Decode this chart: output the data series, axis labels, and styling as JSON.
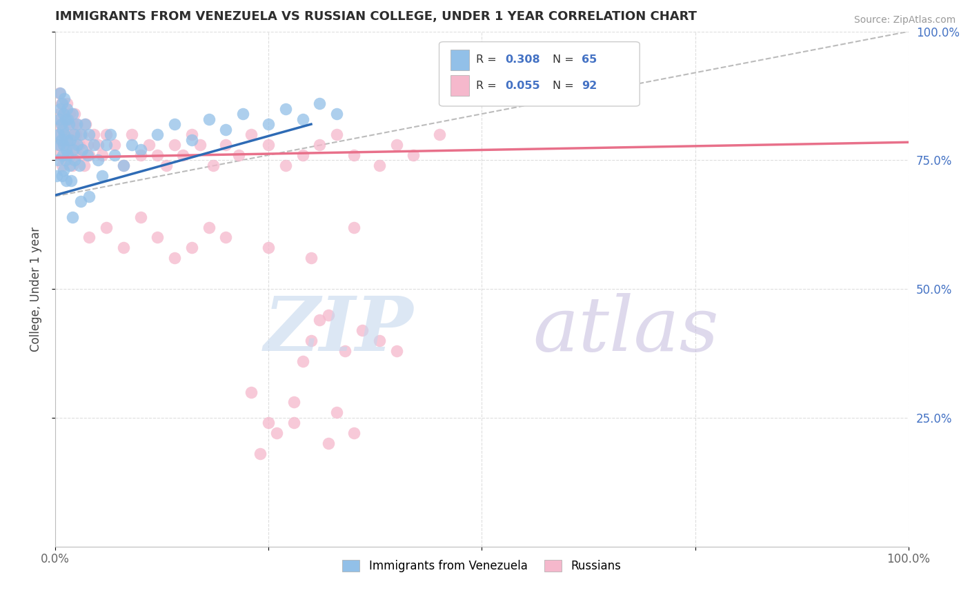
{
  "title": "IMMIGRANTS FROM VENEZUELA VS RUSSIAN COLLEGE, UNDER 1 YEAR CORRELATION CHART",
  "source": "Source: ZipAtlas.com",
  "ylabel": "College, Under 1 year",
  "xlim": [
    0,
    1
  ],
  "ylim": [
    0,
    1
  ],
  "blue_color": "#92C0E8",
  "pink_color": "#F5B8CC",
  "blue_line_color": "#2E6BB5",
  "pink_line_color": "#E8708A",
  "dashed_line_color": "#AAAAAA",
  "legend_label1": "Immigrants from Venezuela",
  "legend_label2": "Russians",
  "title_color": "#2D2D2D",
  "r_value_color": "#4472C4",
  "n_value_color": "#4472C4",
  "blue_scatter_x": [
    0.002,
    0.003,
    0.004,
    0.005,
    0.005,
    0.006,
    0.006,
    0.007,
    0.007,
    0.008,
    0.008,
    0.009,
    0.009,
    0.01,
    0.01,
    0.01,
    0.011,
    0.011,
    0.012,
    0.012,
    0.013,
    0.013,
    0.014,
    0.014,
    0.015,
    0.015,
    0.016,
    0.017,
    0.018,
    0.019,
    0.02,
    0.021,
    0.022,
    0.023,
    0.025,
    0.026,
    0.028,
    0.03,
    0.032,
    0.035,
    0.038,
    0.04,
    0.045,
    0.05,
    0.055,
    0.06,
    0.065,
    0.07,
    0.08,
    0.09,
    0.1,
    0.12,
    0.14,
    0.16,
    0.18,
    0.2,
    0.22,
    0.25,
    0.27,
    0.29,
    0.31,
    0.33,
    0.02,
    0.03,
    0.04
  ],
  "blue_scatter_y": [
    0.72,
    0.75,
    0.8,
    0.83,
    0.78,
    0.85,
    0.88,
    0.82,
    0.79,
    0.86,
    0.72,
    0.76,
    0.81,
    0.84,
    0.78,
    0.73,
    0.8,
    0.87,
    0.75,
    0.83,
    0.77,
    0.71,
    0.85,
    0.79,
    0.83,
    0.76,
    0.82,
    0.74,
    0.79,
    0.71,
    0.84,
    0.77,
    0.8,
    0.75,
    0.82,
    0.78,
    0.74,
    0.8,
    0.77,
    0.82,
    0.76,
    0.8,
    0.78,
    0.75,
    0.72,
    0.78,
    0.8,
    0.76,
    0.74,
    0.78,
    0.77,
    0.8,
    0.82,
    0.79,
    0.83,
    0.81,
    0.84,
    0.82,
    0.85,
    0.83,
    0.86,
    0.84,
    0.64,
    0.67,
    0.68
  ],
  "pink_scatter_x": [
    0.002,
    0.003,
    0.004,
    0.005,
    0.005,
    0.006,
    0.007,
    0.008,
    0.009,
    0.01,
    0.01,
    0.011,
    0.012,
    0.013,
    0.014,
    0.015,
    0.016,
    0.017,
    0.018,
    0.019,
    0.02,
    0.021,
    0.022,
    0.023,
    0.024,
    0.025,
    0.026,
    0.028,
    0.03,
    0.032,
    0.034,
    0.036,
    0.038,
    0.04,
    0.045,
    0.05,
    0.055,
    0.06,
    0.07,
    0.08,
    0.09,
    0.1,
    0.11,
    0.12,
    0.13,
    0.14,
    0.15,
    0.16,
    0.17,
    0.185,
    0.2,
    0.215,
    0.23,
    0.25,
    0.27,
    0.29,
    0.31,
    0.33,
    0.35,
    0.38,
    0.4,
    0.42,
    0.45,
    0.04,
    0.06,
    0.08,
    0.1,
    0.12,
    0.14,
    0.16,
    0.18,
    0.2,
    0.25,
    0.3,
    0.35,
    0.3,
    0.32,
    0.34,
    0.36,
    0.29,
    0.31,
    0.38,
    0.4,
    0.35,
    0.33,
    0.28,
    0.25,
    0.23,
    0.32,
    0.28,
    0.26,
    0.24
  ],
  "pink_scatter_y": [
    0.82,
    0.78,
    0.76,
    0.84,
    0.88,
    0.8,
    0.86,
    0.74,
    0.82,
    0.78,
    0.84,
    0.8,
    0.76,
    0.82,
    0.86,
    0.8,
    0.78,
    0.84,
    0.76,
    0.8,
    0.74,
    0.82,
    0.78,
    0.84,
    0.8,
    0.76,
    0.82,
    0.78,
    0.76,
    0.8,
    0.74,
    0.82,
    0.78,
    0.76,
    0.8,
    0.78,
    0.76,
    0.8,
    0.78,
    0.74,
    0.8,
    0.76,
    0.78,
    0.76,
    0.74,
    0.78,
    0.76,
    0.8,
    0.78,
    0.74,
    0.78,
    0.76,
    0.8,
    0.78,
    0.74,
    0.76,
    0.78,
    0.8,
    0.76,
    0.74,
    0.78,
    0.76,
    0.8,
    0.6,
    0.62,
    0.58,
    0.64,
    0.6,
    0.56,
    0.58,
    0.62,
    0.6,
    0.58,
    0.56,
    0.62,
    0.4,
    0.45,
    0.38,
    0.42,
    0.36,
    0.44,
    0.4,
    0.38,
    0.22,
    0.26,
    0.28,
    0.24,
    0.3,
    0.2,
    0.24,
    0.22,
    0.18
  ],
  "blue_line_x0": 0.0,
  "blue_line_y0": 0.682,
  "blue_line_x1": 0.3,
  "blue_line_y1": 0.82,
  "pink_line_x0": 0.0,
  "pink_line_y0": 0.755,
  "pink_line_x1": 1.0,
  "pink_line_y1": 0.785,
  "dash_line_x0": 0.0,
  "dash_line_y0": 0.68,
  "dash_line_x1": 1.0,
  "dash_line_y1": 1.0
}
